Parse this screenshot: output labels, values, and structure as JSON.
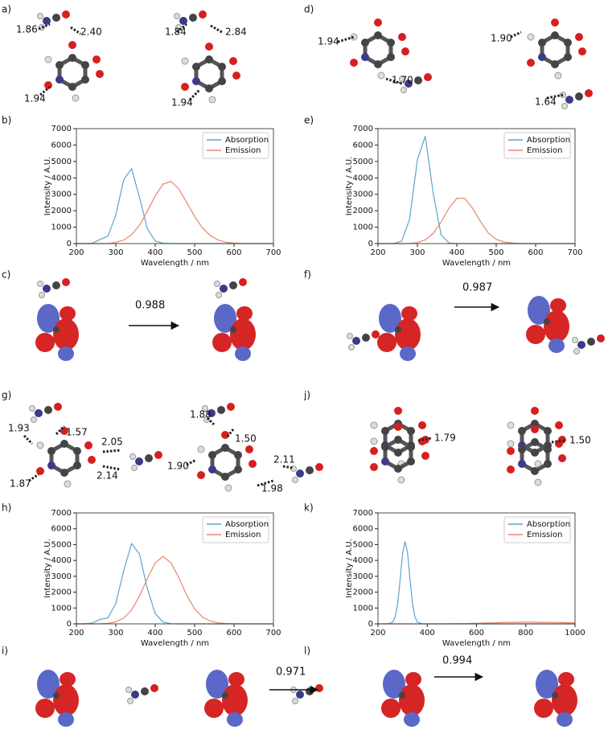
{
  "panel_labels": [
    "a)",
    "b)",
    "c)",
    "d)",
    "e)",
    "f)",
    "g)",
    "h)",
    "i)",
    "j)",
    "k)",
    "l)"
  ],
  "annotations": {
    "a": [
      "1.86",
      "2.40",
      "1.94",
      "1.84",
      "2.84",
      "1.94"
    ],
    "d": [
      "1.94",
      "1.70",
      "1.90",
      "1.64"
    ],
    "c": [
      "0.988"
    ],
    "f": [
      "0.987"
    ],
    "g": [
      "1.93",
      "1.57",
      "2.05",
      "1.87",
      "2.14",
      "1.88",
      "1.50",
      "2.11",
      "1.90",
      "1.98"
    ],
    "j": [
      "1.79",
      "1.50"
    ],
    "i": [
      "0.971"
    ],
    "l": [
      "0.994"
    ]
  },
  "chart_data": [
    {
      "type": "line",
      "xlabel": "Wavelength / nm",
      "ylabel": "Intensity / A.U.",
      "legend": "upper right",
      "x": [
        200,
        220,
        240,
        260,
        280,
        300,
        320,
        340,
        360,
        380,
        400,
        420,
        440,
        460,
        480,
        500,
        520,
        540,
        560,
        580,
        600,
        620,
        640,
        660,
        680,
        700
      ],
      "series": [
        {
          "name": "Absorption",
          "color": "#5ba6cc",
          "values": [
            0,
            0,
            20,
            250,
            450,
            1745,
            3885,
            4560,
            2820,
            920,
            158,
            20,
            0,
            0,
            0,
            0,
            0,
            0,
            0,
            0,
            0,
            0,
            0,
            0,
            0,
            0
          ]
        },
        {
          "name": "Emission",
          "color": "#e8866a",
          "values": [
            0,
            0,
            0,
            0,
            0,
            70,
            215,
            535,
            1120,
            1970,
            2910,
            3620,
            3790,
            3320,
            2500,
            1650,
            950,
            480,
            210,
            85,
            30,
            10,
            0,
            0,
            0,
            0
          ]
        }
      ],
      "xlim": [
        200,
        700
      ],
      "xticks": [
        200,
        300,
        400,
        500,
        600,
        700
      ],
      "ylim": [
        0,
        7000
      ],
      "yticks": [
        0,
        1000,
        2000,
        3000,
        4000,
        5000,
        6000,
        7000
      ]
    },
    {
      "type": "line",
      "xlabel": "Wavelength / nm",
      "ylabel": "Intensity / A.U.",
      "legend": "upper right",
      "x": [
        200,
        220,
        240,
        260,
        280,
        300,
        320,
        340,
        360,
        380,
        400,
        420,
        440,
        460,
        480,
        500,
        520,
        540,
        560,
        580,
        600,
        620,
        640,
        660,
        680,
        700
      ],
      "series": [
        {
          "name": "Absorption",
          "color": "#5ba6cc",
          "values": [
            0,
            0,
            5,
            150,
            1460,
            5100,
            6540,
            3090,
            540,
            35,
            0,
            0,
            0,
            0,
            0,
            0,
            0,
            0,
            0,
            0,
            0,
            0,
            0,
            0,
            0,
            0
          ]
        },
        {
          "name": "Emission",
          "color": "#e8866a",
          "values": [
            0,
            0,
            0,
            0,
            10,
            65,
            228,
            615,
            1305,
            2150,
            2760,
            2760,
            2150,
            1350,
            650,
            260,
            100,
            40,
            15,
            0,
            0,
            0,
            0,
            0,
            0,
            0
          ]
        }
      ],
      "xlim": [
        200,
        700
      ],
      "xticks": [
        200,
        300,
        400,
        500,
        600,
        700
      ],
      "ylim": [
        0,
        7000
      ],
      "yticks": [
        0,
        1000,
        2000,
        3000,
        4000,
        5000,
        6000,
        7000
      ]
    },
    {
      "type": "line",
      "xlabel": "Wavelength / nm",
      "ylabel": "Intensity / A.U.",
      "legend": "upper right",
      "x": [
        200,
        220,
        240,
        260,
        280,
        300,
        320,
        340,
        360,
        380,
        400,
        420,
        440,
        460,
        480,
        500,
        520,
        540,
        560,
        580,
        600,
        620,
        640,
        660,
        680,
        700
      ],
      "series": [
        {
          "name": "Absorption",
          "color": "#5ba6cc",
          "values": [
            0,
            0,
            50,
            280,
            380,
            1280,
            3350,
            5060,
            4410,
            2220,
            650,
            110,
            10,
            0,
            0,
            0,
            0,
            0,
            0,
            0,
            0,
            0,
            0,
            0,
            0,
            0
          ]
        },
        {
          "name": "Emission",
          "color": "#e8866a",
          "values": [
            0,
            0,
            0,
            0,
            30,
            120,
            360,
            875,
            1745,
            2860,
            3850,
            4250,
            3850,
            2900,
            1800,
            950,
            420,
            170,
            60,
            20,
            5,
            0,
            0,
            0,
            0,
            0
          ]
        }
      ],
      "xlim": [
        200,
        700
      ],
      "xticks": [
        200,
        300,
        400,
        500,
        600,
        700
      ],
      "ylim": [
        0,
        7000
      ],
      "yticks": [
        0,
        1000,
        2000,
        3000,
        4000,
        5000,
        6000,
        7000
      ]
    },
    {
      "type": "line",
      "xlabel": "Wavelength / nm",
      "ylabel": "Intensity / A.U.",
      "legend": "upper right",
      "x": [
        200,
        220,
        240,
        260,
        270,
        280,
        290,
        300,
        310,
        320,
        330,
        340,
        350,
        360,
        380,
        400,
        420,
        440,
        460,
        480,
        500,
        520,
        540,
        560,
        580,
        600,
        620,
        640,
        660,
        680,
        700,
        720,
        740,
        760,
        780,
        800,
        820,
        840,
        860,
        880,
        900,
        920,
        940,
        960,
        980,
        1000
      ],
      "series": [
        {
          "name": "Absorption",
          "color": "#5ba6cc",
          "values": [
            0,
            0,
            5,
            110,
            440,
            1295,
            2800,
            4460,
            5200,
            4460,
            2800,
            1295,
            440,
            110,
            5,
            0,
            0,
            0,
            0,
            0,
            0,
            0,
            0,
            0,
            0,
            0,
            0,
            0,
            0,
            0,
            0,
            0,
            0,
            0,
            0,
            0,
            0,
            0,
            0,
            0,
            0,
            0,
            0,
            0,
            0,
            0
          ]
        },
        {
          "name": "Emission",
          "color": "#e8866a",
          "values": [
            0,
            0,
            0,
            0,
            0,
            0,
            0,
            0,
            0,
            0,
            0,
            0,
            0,
            0,
            0,
            0,
            0,
            0,
            0,
            0,
            5,
            8,
            12,
            17,
            23,
            30,
            40,
            50,
            60,
            70,
            80,
            88,
            95,
            100,
            103,
            105,
            104,
            102,
            98,
            94,
            90,
            85,
            80,
            75,
            70,
            65
          ]
        }
      ],
      "xlim": [
        200,
        1000
      ],
      "xticks": [
        200,
        400,
        600,
        800,
        1000
      ],
      "ylim": [
        0,
        7000
      ],
      "yticks": [
        0,
        1000,
        2000,
        3000,
        4000,
        5000,
        6000,
        7000
      ]
    }
  ]
}
